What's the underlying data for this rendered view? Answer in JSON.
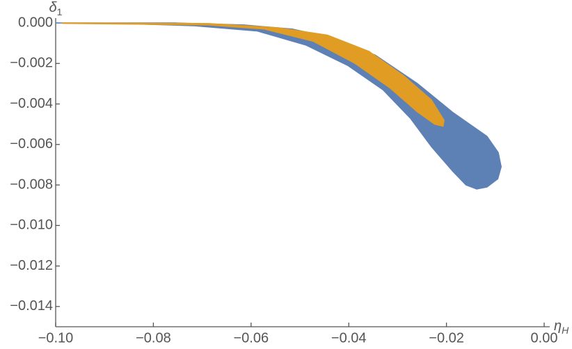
{
  "chart_data": {
    "type": "region",
    "x_label": {
      "symbol": "η",
      "subscript": "H"
    },
    "y_label": {
      "symbol": "δ",
      "subscript": "1"
    },
    "xlim": [
      -0.1,
      0
    ],
    "ylim": [
      -0.015,
      0
    ],
    "xticks": [
      {
        "value": -0.1,
        "label": "−0.10"
      },
      {
        "value": -0.08,
        "label": "−0.08"
      },
      {
        "value": -0.06,
        "label": "−0.06"
      },
      {
        "value": -0.04,
        "label": "−0.04"
      },
      {
        "value": -0.02,
        "label": "−0.02"
      },
      {
        "value": 0,
        "label": "0.00"
      }
    ],
    "yticks": [
      {
        "value": 0,
        "label": "0.000"
      },
      {
        "value": -0.002,
        "label": "−0.002"
      },
      {
        "value": -0.004,
        "label": "−0.004"
      },
      {
        "value": -0.006,
        "label": "−0.006"
      },
      {
        "value": -0.008,
        "label": "−0.008"
      },
      {
        "value": -0.01,
        "label": "−0.010"
      },
      {
        "value": -0.012,
        "label": "−0.012"
      },
      {
        "value": -0.014,
        "label": "−0.014"
      }
    ],
    "series": [
      {
        "color": "#5e81b5",
        "x": [
          -0.1,
          -0.0758,
          -0.0615,
          -0.0516,
          -0.043,
          -0.0345,
          -0.0259,
          -0.0188,
          -0.0117,
          -0.0094,
          -0.0088,
          -0.0095,
          -0.0117,
          -0.0138,
          -0.016,
          -0.0188,
          -0.0231,
          -0.0274,
          -0.033,
          -0.0402,
          -0.0487,
          -0.0587,
          -0.0715,
          -0.0858
        ],
        "values": [
          0,
          0,
          -0.0001,
          -0.0003,
          -0.00075,
          -0.0016,
          -0.003,
          -0.0044,
          -0.0056,
          -0.0064,
          -0.0071,
          -0.0077,
          -0.0081,
          -0.0082,
          -0.008,
          -0.0073,
          -0.0061,
          -0.0047,
          -0.0033,
          -0.0021,
          -0.0011,
          -0.0004,
          -0.00014,
          -3e-05
        ]
      },
      {
        "color": "#e19c24",
        "x": [
          -0.0986,
          -0.0687,
          -0.0544,
          -0.0444,
          -0.0359,
          -0.0288,
          -0.0231,
          -0.0205,
          -0.0207,
          -0.0224,
          -0.0259,
          -0.0316,
          -0.0387,
          -0.0473,
          -0.0573,
          -0.0687,
          -0.0986
        ],
        "values": [
          0,
          -3e-05,
          -0.00024,
          -0.0006,
          -0.0014,
          -0.0026,
          -0.0038,
          -0.0048,
          -0.0051,
          -0.005,
          -0.0044,
          -0.0032,
          -0.002,
          -0.0009,
          -0.0003,
          -0.0001,
          -2e-05
        ]
      }
    ]
  }
}
